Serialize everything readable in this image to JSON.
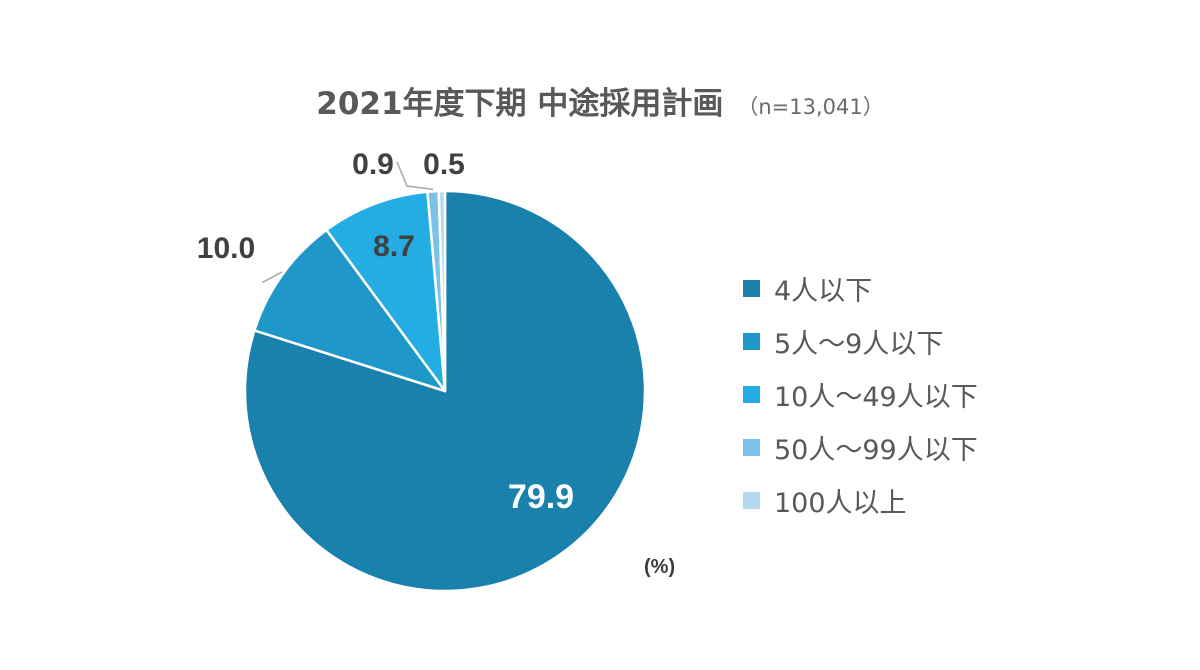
{
  "chart_data": {
    "type": "pie",
    "title": "2021年度下期 中途採用計画",
    "subtitle": "（n=13,041）",
    "unit_label": "(%)",
    "categories": [
      "4人以下",
      "5人～9人以下",
      "10人～49人以下",
      "50人～99人以下",
      "100人以上"
    ],
    "values": [
      79.9,
      10.0,
      8.7,
      0.9,
      0.5
    ],
    "value_labels": [
      "79.9",
      "10.0",
      "8.7",
      "0.9",
      "0.5"
    ],
    "colors": [
      "#1981ab",
      "#1f97c9",
      "#24ade2",
      "#7cc1e8",
      "#b3d9f1"
    ],
    "legend_position": "right"
  }
}
